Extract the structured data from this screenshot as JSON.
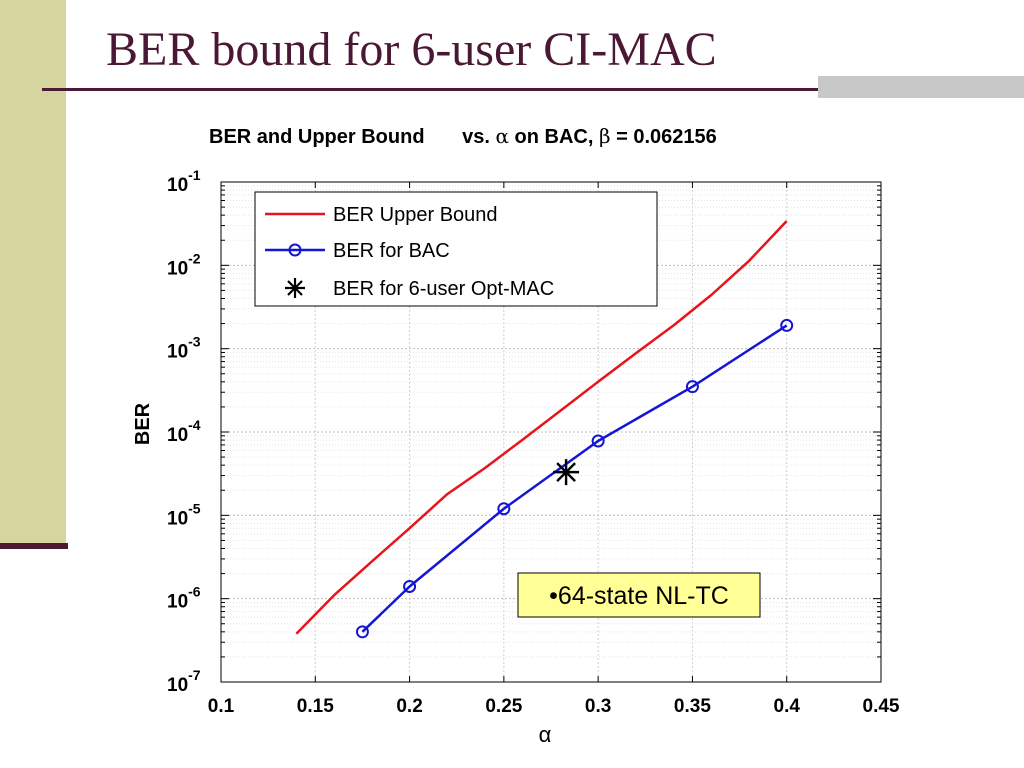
{
  "slide": {
    "title": "BER bound for 6-user CI-MAC",
    "note": "•64-state NL-TC"
  },
  "chart_data": {
    "type": "line",
    "title": "BER and Upper Bound vs. α on BAC, β = 0.062156",
    "title_parts": [
      "BER and Upper Bound",
      "vs. ",
      "α",
      " on BAC, ",
      "β",
      " = 0.062156"
    ],
    "xlabel": "α",
    "ylabel": "BER",
    "xlim": [
      0.1,
      0.45
    ],
    "ylim": [
      1e-07,
      0.1
    ],
    "yscale": "log",
    "grid": true,
    "legend_position": "top-left",
    "x_tick_labels": [
      "0.1",
      "0.15",
      "0.2",
      "0.25",
      "0.3",
      "0.35",
      "0.4",
      "0.45"
    ],
    "y_tick_labels": [
      {
        "base": "10",
        "exp": "-1"
      },
      {
        "base": "10",
        "exp": "-2"
      },
      {
        "base": "10",
        "exp": "-3"
      },
      {
        "base": "10",
        "exp": "-4"
      },
      {
        "base": "10",
        "exp": "-5"
      },
      {
        "base": "10",
        "exp": "-6"
      },
      {
        "base": "10",
        "exp": "-7"
      }
    ],
    "series": [
      {
        "name": "BER Upper Bound",
        "color": "#e8141b",
        "marker": "none",
        "x": [
          0.14,
          0.16,
          0.18,
          0.2,
          0.22,
          0.24,
          0.26,
          0.28,
          0.3,
          0.32,
          0.34,
          0.36,
          0.38,
          0.4
        ],
        "y": [
          3.8e-07,
          1.1e-06,
          2.8e-06,
          7e-06,
          1.8e-05,
          3.7e-05,
          8.1e-05,
          0.00018,
          0.0004,
          0.00088,
          0.0019,
          0.0044,
          0.0113,
          0.034
        ]
      },
      {
        "name": "BER for BAC",
        "color": "#1515d6",
        "marker": "circle",
        "x": [
          0.175,
          0.2,
          0.25,
          0.3,
          0.35,
          0.4
        ],
        "y": [
          4e-07,
          1.4e-06,
          1.2e-05,
          7.8e-05,
          0.00035,
          0.0019
        ]
      },
      {
        "name": "BER for 6-user Opt-MAC",
        "color": "#000000",
        "marker": "asterisk",
        "x": [
          0.283
        ],
        "y": [
          3.3e-05
        ]
      }
    ]
  }
}
